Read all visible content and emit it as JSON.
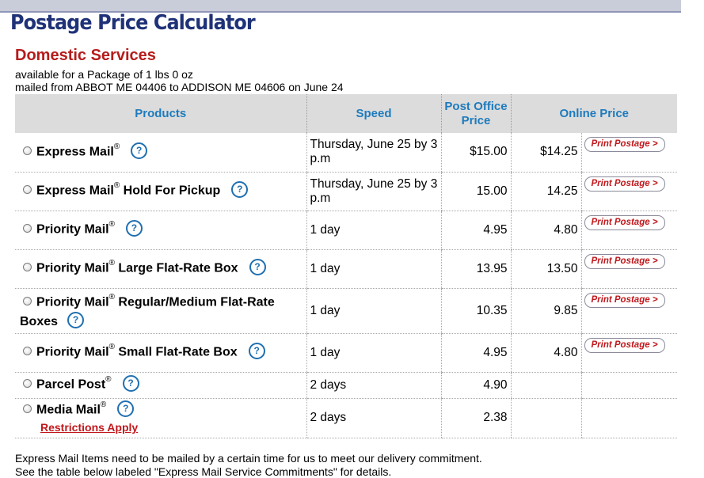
{
  "header": {
    "title": "Postage Price Calculator",
    "section_title": "Domestic Services",
    "subtitle_line1": "available for a Package of 1 lbs 0 oz",
    "subtitle_line2": "mailed from ABBOT ME 04406 to ADDISON ME 04606 on June 24"
  },
  "table": {
    "headers": {
      "products": "Products",
      "speed": "Speed",
      "post_office_price": "Post Office Price",
      "online_price": "Online Price"
    },
    "print_label": "Print Postage >",
    "help_glyph": "?",
    "reg_mark": "®",
    "rows": [
      {
        "pre": "Express Mail",
        "post": "",
        "speed": "Thursday, June 25 by 3 p.m",
        "po_price": "$15.00",
        "online_price": "$14.25"
      },
      {
        "pre": "Express Mail",
        "post": " Hold For Pickup",
        "speed": "Thursday, June 25 by 3 p.m",
        "po_price": "15.00",
        "online_price": "14.25"
      },
      {
        "pre": "Priority Mail",
        "post": "",
        "speed": "1 day",
        "po_price": "4.95",
        "online_price": "4.80"
      },
      {
        "pre": "Priority Mail",
        "post": " Large Flat-Rate Box",
        "speed": "1 day",
        "po_price": "13.95",
        "online_price": "13.50"
      },
      {
        "pre": "Priority Mail",
        "post": " Regular/Medium Flat-Rate",
        "post2": "Boxes",
        "speed": "1 day",
        "po_price": "10.35",
        "online_price": "9.85"
      },
      {
        "pre": "Priority Mail",
        "post": " Small Flat-Rate Box",
        "speed": "1 day",
        "po_price": "4.95",
        "online_price": "4.80"
      },
      {
        "pre": "Parcel Post",
        "post": "",
        "speed": "2 days",
        "po_price": "4.90",
        "online_price": ""
      },
      {
        "pre": "Media Mail",
        "post": "",
        "speed": "2 days",
        "po_price": "2.38",
        "online_price": "",
        "note": "Restrictions Apply"
      }
    ]
  },
  "footer": {
    "line1": "Express Mail Items need to be mailed by a certain time for us to meet our delivery commitment.",
    "line2": "See the table below labeled \"Express Mail Service Commitments\" for details."
  },
  "colors": {
    "title_blue": "#1f3278",
    "section_red": "#b51c1c",
    "header_blue": "#1e7bbd",
    "header_bg": "#dcdcdc",
    "button_red": "#c0181c"
  }
}
